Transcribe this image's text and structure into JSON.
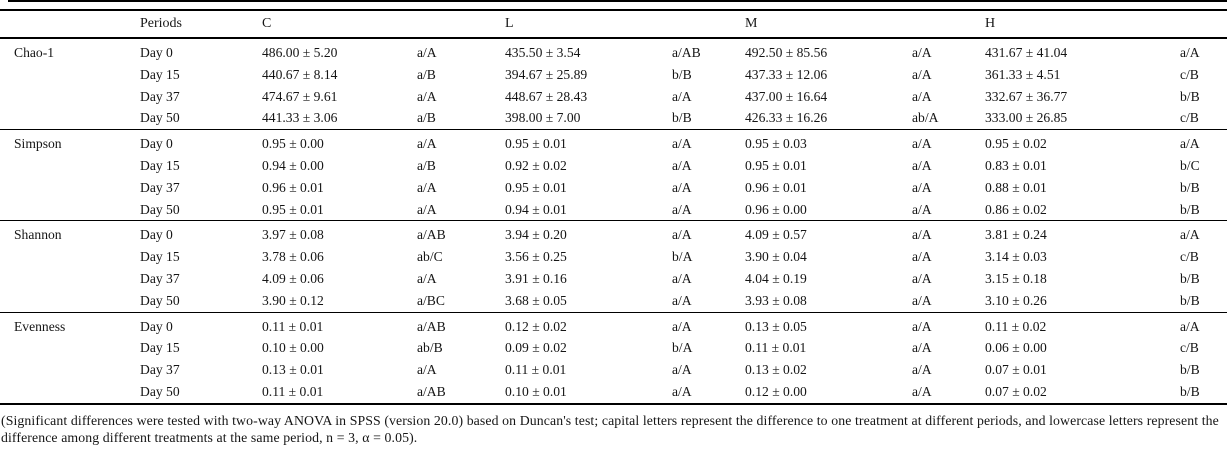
{
  "header": {
    "periods_label": "Periods",
    "treatments": [
      "C",
      "L",
      "M",
      "H"
    ]
  },
  "sections": [
    {
      "index_label": "Chao-1",
      "rows": [
        {
          "period": "Day 0",
          "cells": [
            {
              "value": "486.00 ± 5.20",
              "sig": "a/A"
            },
            {
              "value": "435.50 ± 3.54",
              "sig": "a/AB"
            },
            {
              "value": "492.50 ± 85.56",
              "sig": "a/A"
            },
            {
              "value": "431.67 ± 41.04",
              "sig": "a/A"
            }
          ]
        },
        {
          "period": "Day 15",
          "cells": [
            {
              "value": "440.67 ± 8.14",
              "sig": "a/B"
            },
            {
              "value": "394.67 ± 25.89",
              "sig": "b/B"
            },
            {
              "value": "437.33 ± 12.06",
              "sig": "a/A"
            },
            {
              "value": "361.33 ± 4.51",
              "sig": "c/B"
            }
          ]
        },
        {
          "period": "Day 37",
          "cells": [
            {
              "value": "474.67 ± 9.61",
              "sig": "a/A"
            },
            {
              "value": "448.67 ± 28.43",
              "sig": "a/A"
            },
            {
              "value": "437.00 ± 16.64",
              "sig": "a/A"
            },
            {
              "value": "332.67 ± 36.77",
              "sig": "b/B"
            }
          ]
        },
        {
          "period": "Day 50",
          "cells": [
            {
              "value": "441.33 ± 3.06",
              "sig": "a/B"
            },
            {
              "value": "398.00 ± 7.00",
              "sig": "b/B"
            },
            {
              "value": "426.33 ± 16.26",
              "sig": "ab/A"
            },
            {
              "value": "333.00 ± 26.85",
              "sig": "c/B"
            }
          ]
        }
      ]
    },
    {
      "index_label": "Simpson",
      "rows": [
        {
          "period": "Day 0",
          "cells": [
            {
              "value": "0.95 ± 0.00",
              "sig": "a/A"
            },
            {
              "value": "0.95 ± 0.01",
              "sig": "a/A"
            },
            {
              "value": "0.95 ± 0.03",
              "sig": "a/A"
            },
            {
              "value": "0.95 ± 0.02",
              "sig": "a/A"
            }
          ]
        },
        {
          "period": "Day 15",
          "cells": [
            {
              "value": "0.94 ± 0.00",
              "sig": "a/B"
            },
            {
              "value": "0.92 ± 0.02",
              "sig": "a/A"
            },
            {
              "value": "0.95 ± 0.01",
              "sig": "a/A"
            },
            {
              "value": "0.83 ± 0.01",
              "sig": "b/C"
            }
          ]
        },
        {
          "period": "Day 37",
          "cells": [
            {
              "value": "0.96 ± 0.01",
              "sig": "a/A"
            },
            {
              "value": "0.95 ± 0.01",
              "sig": "a/A"
            },
            {
              "value": "0.96 ± 0.01",
              "sig": "a/A"
            },
            {
              "value": "0.88 ± 0.01",
              "sig": "b/B"
            }
          ]
        },
        {
          "period": "Day 50",
          "cells": [
            {
              "value": "0.95 ± 0.01",
              "sig": "a/A"
            },
            {
              "value": "0.94 ± 0.01",
              "sig": "a/A"
            },
            {
              "value": "0.96 ± 0.00",
              "sig": "a/A"
            },
            {
              "value": "0.86 ± 0.02",
              "sig": "b/B"
            }
          ]
        }
      ]
    },
    {
      "index_label": "Shannon",
      "rows": [
        {
          "period": "Day 0",
          "cells": [
            {
              "value": "3.97 ± 0.08",
              "sig": "a/AB"
            },
            {
              "value": "3.94 ± 0.20",
              "sig": "a/A"
            },
            {
              "value": "4.09 ± 0.57",
              "sig": "a/A"
            },
            {
              "value": "3.81 ± 0.24",
              "sig": "a/A"
            }
          ]
        },
        {
          "period": "Day 15",
          "cells": [
            {
              "value": "3.78 ± 0.06",
              "sig": "ab/C"
            },
            {
              "value": "3.56 ± 0.25",
              "sig": "b/A"
            },
            {
              "value": "3.90 ± 0.04",
              "sig": "a/A"
            },
            {
              "value": "3.14 ± 0.03",
              "sig": "c/B"
            }
          ]
        },
        {
          "period": "Day 37",
          "cells": [
            {
              "value": "4.09 ± 0.06",
              "sig": "a/A"
            },
            {
              "value": "3.91 ± 0.16",
              "sig": "a/A"
            },
            {
              "value": "4.04 ± 0.19",
              "sig": "a/A"
            },
            {
              "value": "3.15 ± 0.18",
              "sig": "b/B"
            }
          ]
        },
        {
          "period": "Day 50",
          "cells": [
            {
              "value": "3.90 ± 0.12",
              "sig": "a/BC"
            },
            {
              "value": "3.68 ± 0.05",
              "sig": "a/A"
            },
            {
              "value": "3.93 ± 0.08",
              "sig": "a/A"
            },
            {
              "value": "3.10 ± 0.26",
              "sig": "b/B"
            }
          ]
        }
      ]
    },
    {
      "index_label": "Evenness",
      "rows": [
        {
          "period": "Day 0",
          "cells": [
            {
              "value": "0.11 ± 0.01",
              "sig": "a/AB"
            },
            {
              "value": "0.12 ± 0.02",
              "sig": "a/A"
            },
            {
              "value": "0.13 ± 0.05",
              "sig": "a/A"
            },
            {
              "value": "0.11 ± 0.02",
              "sig": "a/A"
            }
          ]
        },
        {
          "period": "Day 15",
          "cells": [
            {
              "value": "0.10 ± 0.00",
              "sig": "ab/B"
            },
            {
              "value": "0.09 ± 0.02",
              "sig": "b/A"
            },
            {
              "value": "0.11 ± 0.01",
              "sig": "a/A"
            },
            {
              "value": "0.06 ± 0.00",
              "sig": "c/B"
            }
          ]
        },
        {
          "period": "Day 37",
          "cells": [
            {
              "value": "0.13 ± 0.01",
              "sig": "a/A"
            },
            {
              "value": "0.11 ± 0.01",
              "sig": "a/A"
            },
            {
              "value": "0.13 ± 0.02",
              "sig": "a/A"
            },
            {
              "value": "0.07 ± 0.01",
              "sig": "b/B"
            }
          ]
        },
        {
          "period": "Day 50",
          "cells": [
            {
              "value": "0.11 ± 0.01",
              "sig": "a/AB"
            },
            {
              "value": "0.10 ± 0.01",
              "sig": "a/A"
            },
            {
              "value": "0.12 ± 0.00",
              "sig": "a/A"
            },
            {
              "value": "0.07 ± 0.02",
              "sig": "b/B"
            }
          ]
        }
      ]
    }
  ],
  "footnote": "(Significant differences were tested with two-way ANOVA in SPSS (version 20.0) based on Duncan's test; capital letters represent the difference to one treatment at different periods, and lowercase letters represent the difference among different treatments at the same period, n = 3, α = 0.05)."
}
